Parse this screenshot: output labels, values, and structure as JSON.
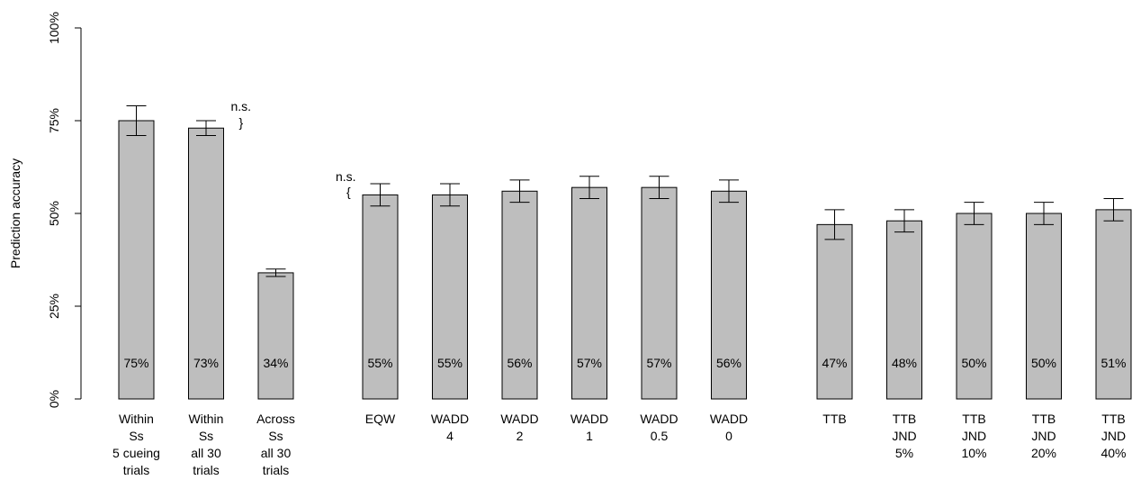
{
  "chart_data": {
    "type": "bar",
    "ylabel": "Prediction accuracy",
    "ylim": [
      0,
      100
    ],
    "yticks": [
      {
        "value": 0,
        "label": "0%"
      },
      {
        "value": 25,
        "label": "25%"
      },
      {
        "value": 50,
        "label": "50%"
      },
      {
        "value": 75,
        "label": "75%"
      },
      {
        "value": 100,
        "label": "100%"
      }
    ],
    "bar_color": "#bebebe",
    "grid": false,
    "groups": [
      {
        "bars": [
          {
            "label_lines": [
              "Within",
              "Ss",
              "5 cueing",
              "trials"
            ],
            "value": 75,
            "err_low": 71,
            "err_high": 79,
            "value_label": "75%"
          },
          {
            "label_lines": [
              "Within",
              "Ss",
              "all 30",
              "trials"
            ],
            "value": 73,
            "err_low": 71,
            "err_high": 75,
            "value_label": "73%"
          },
          {
            "label_lines": [
              "Across",
              "Ss",
              "all 30",
              "trials"
            ],
            "value": 34,
            "err_low": 33,
            "err_high": 35,
            "value_label": "34%"
          }
        ]
      },
      {
        "bars": [
          {
            "label_lines": [
              "EQW"
            ],
            "value": 55,
            "err_low": 52,
            "err_high": 58,
            "value_label": "55%"
          },
          {
            "label_lines": [
              "WADD",
              "4"
            ],
            "value": 55,
            "err_low": 52,
            "err_high": 58,
            "value_label": "55%"
          },
          {
            "label_lines": [
              "WADD",
              "2"
            ],
            "value": 56,
            "err_low": 53,
            "err_high": 59,
            "value_label": "56%"
          },
          {
            "label_lines": [
              "WADD",
              "1"
            ],
            "value": 57,
            "err_low": 54,
            "err_high": 60,
            "value_label": "57%"
          },
          {
            "label_lines": [
              "WADD",
              "0.5"
            ],
            "value": 57,
            "err_low": 54,
            "err_high": 60,
            "value_label": "57%"
          },
          {
            "label_lines": [
              "WADD",
              "0"
            ],
            "value": 56,
            "err_low": 53,
            "err_high": 59,
            "value_label": "56%"
          }
        ]
      },
      {
        "bars": [
          {
            "label_lines": [
              "TTB"
            ],
            "value": 47,
            "err_low": 43,
            "err_high": 51,
            "value_label": "47%"
          },
          {
            "label_lines": [
              "TTB",
              "JND",
              "5%"
            ],
            "value": 48,
            "err_low": 45,
            "err_high": 51,
            "value_label": "48%"
          },
          {
            "label_lines": [
              "TTB",
              "JND",
              "10%"
            ],
            "value": 50,
            "err_low": 47,
            "err_high": 53,
            "value_label": "50%"
          },
          {
            "label_lines": [
              "TTB",
              "JND",
              "20%"
            ],
            "value": 50,
            "err_low": 47,
            "err_high": 53,
            "value_label": "50%"
          },
          {
            "label_lines": [
              "TTB",
              "JND",
              "40%"
            ],
            "value": 51,
            "err_low": 48,
            "err_high": 54,
            "value_label": "51%"
          }
        ]
      }
    ],
    "annotations": [
      {
        "text": "n.s.",
        "bracket": "}",
        "between": [
          "Within Ss 5 cueing trials",
          "Within Ss all 30 trials"
        ]
      },
      {
        "text": "n.s.",
        "bracket": "{",
        "between": [
          "Within Ss all 30 trials",
          "EQW"
        ]
      }
    ]
  }
}
